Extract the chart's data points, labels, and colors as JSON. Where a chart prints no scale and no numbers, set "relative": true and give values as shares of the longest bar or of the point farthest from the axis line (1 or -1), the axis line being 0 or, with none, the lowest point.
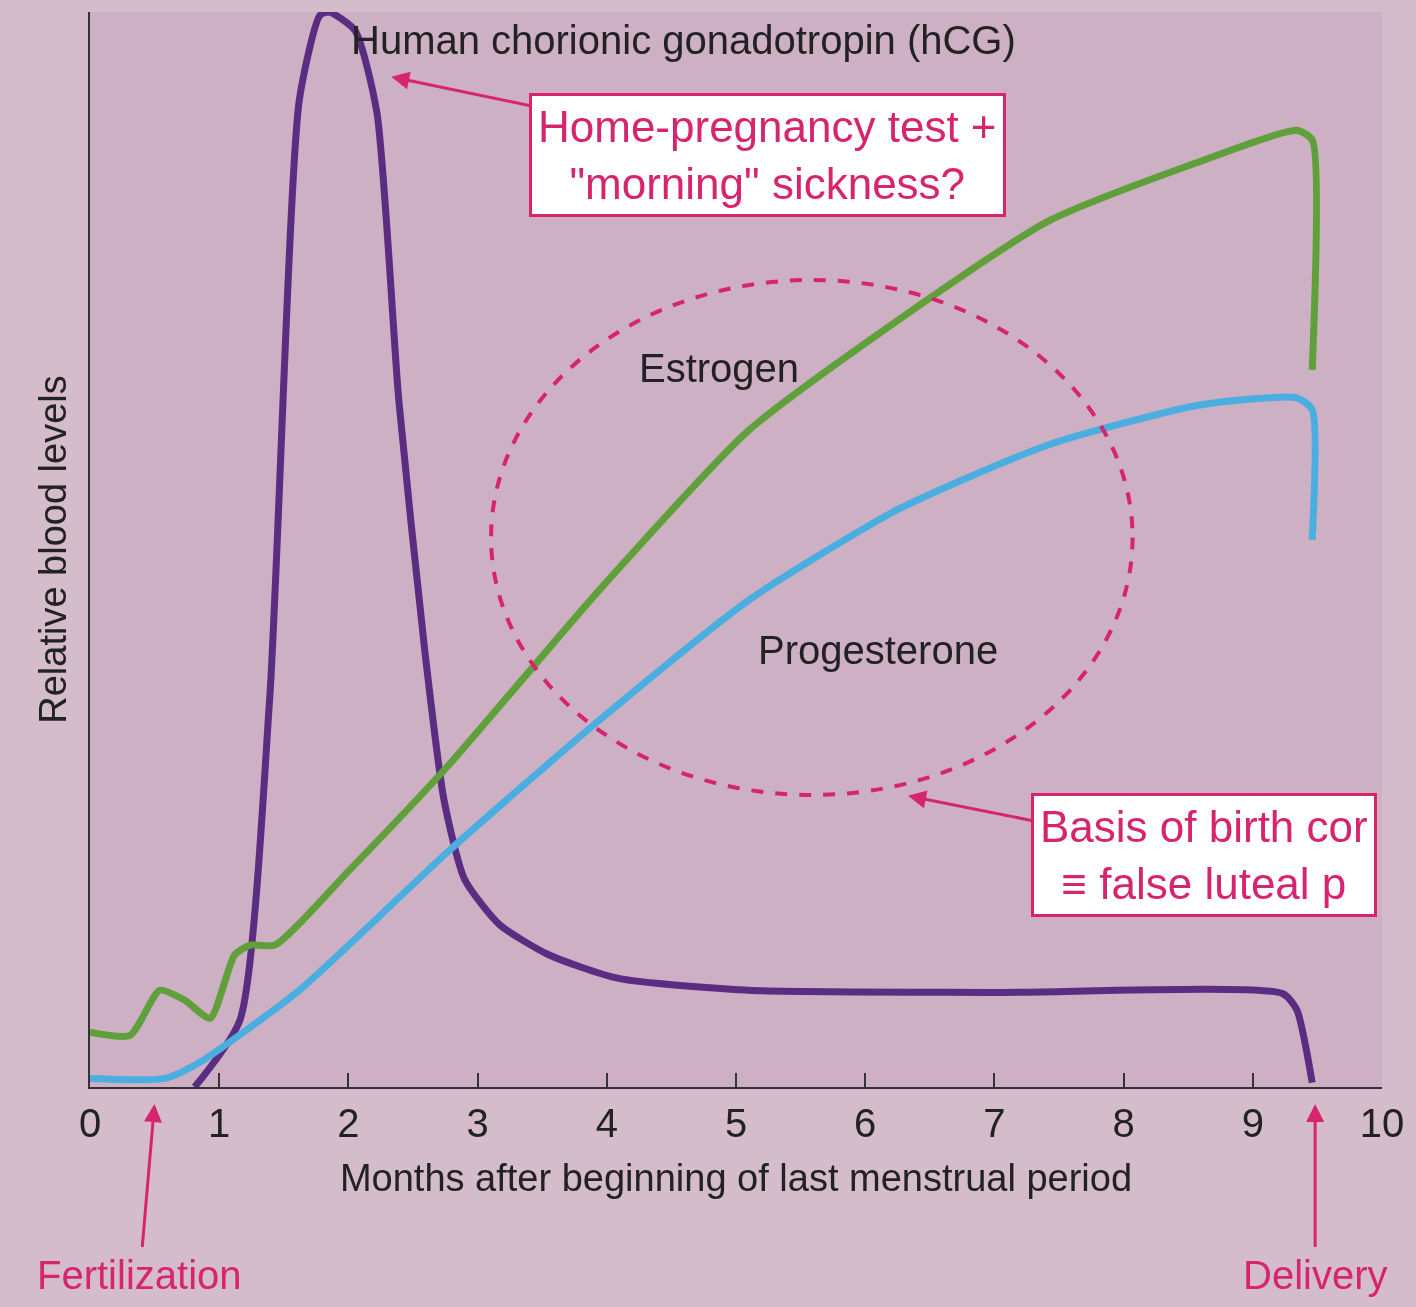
{
  "chart_data": {
    "type": "line",
    "relative": true,
    "xlabel": "Months after beginning of last menstrual period",
    "ylabel": "Relative blood levels",
    "xlim": [
      0,
      10
    ],
    "xticks": [
      0,
      1,
      2,
      3,
      4,
      5,
      6,
      7,
      8,
      9,
      10
    ],
    "grid": false,
    "legend": false,
    "marker": "none",
    "line_style": "solid",
    "series": [
      {
        "name": "Human chorionic gonadotropin (hCG)",
        "color": "#5b2d82",
        "x": [
          0.81,
          1.16,
          1.39,
          1.62,
          1.78,
          1.85,
          2.05,
          2.22,
          2.39,
          2.59,
          2.74,
          2.9,
          3.17,
          3.55,
          4.09,
          5.1,
          7.03,
          9.23,
          9.34,
          9.46
        ],
        "values": [
          0,
          0.062,
          0.36,
          0.918,
          0.997,
          1,
          0.983,
          0.907,
          0.639,
          0.407,
          0.267,
          0.193,
          0.151,
          0.123,
          0.101,
          0.09,
          0.088,
          0.087,
          0.072,
          0.004
        ]
      },
      {
        "name": "Estrogen",
        "color": "#5fa03a",
        "x": [
          0,
          0.31,
          0.54,
          0.73,
          0.93,
          1.12,
          1.24,
          1.43,
          2.01,
          2.78,
          3.94,
          5.1,
          6.25,
          7.41,
          8.57,
          9.34,
          9.46,
          9.46
        ],
        "values": [
          0.051,
          0.048,
          0.09,
          0.081,
          0.064,
          0.123,
          0.132,
          0.132,
          0.202,
          0.3,
          0.462,
          0.611,
          0.713,
          0.805,
          0.86,
          0.89,
          0.881,
          0.667
        ]
      },
      {
        "name": "Progesterone",
        "color": "#4aaee0",
        "x": [
          0,
          0.58,
          0.85,
          1.62,
          2.78,
          3.94,
          5.1,
          6.25,
          7.41,
          8.57,
          9.34,
          9.46,
          9.46
        ],
        "values": [
          0.008,
          0.008,
          0.023,
          0.09,
          0.22,
          0.341,
          0.453,
          0.537,
          0.597,
          0.634,
          0.641,
          0.63,
          0.509
        ]
      }
    ],
    "annotations": [
      "Home-pregnancy test +\n\"morning\" sickness?",
      "Basis of birth cor\n≡ false luteal p",
      "Fertilization",
      "Delivery"
    ]
  }
}
